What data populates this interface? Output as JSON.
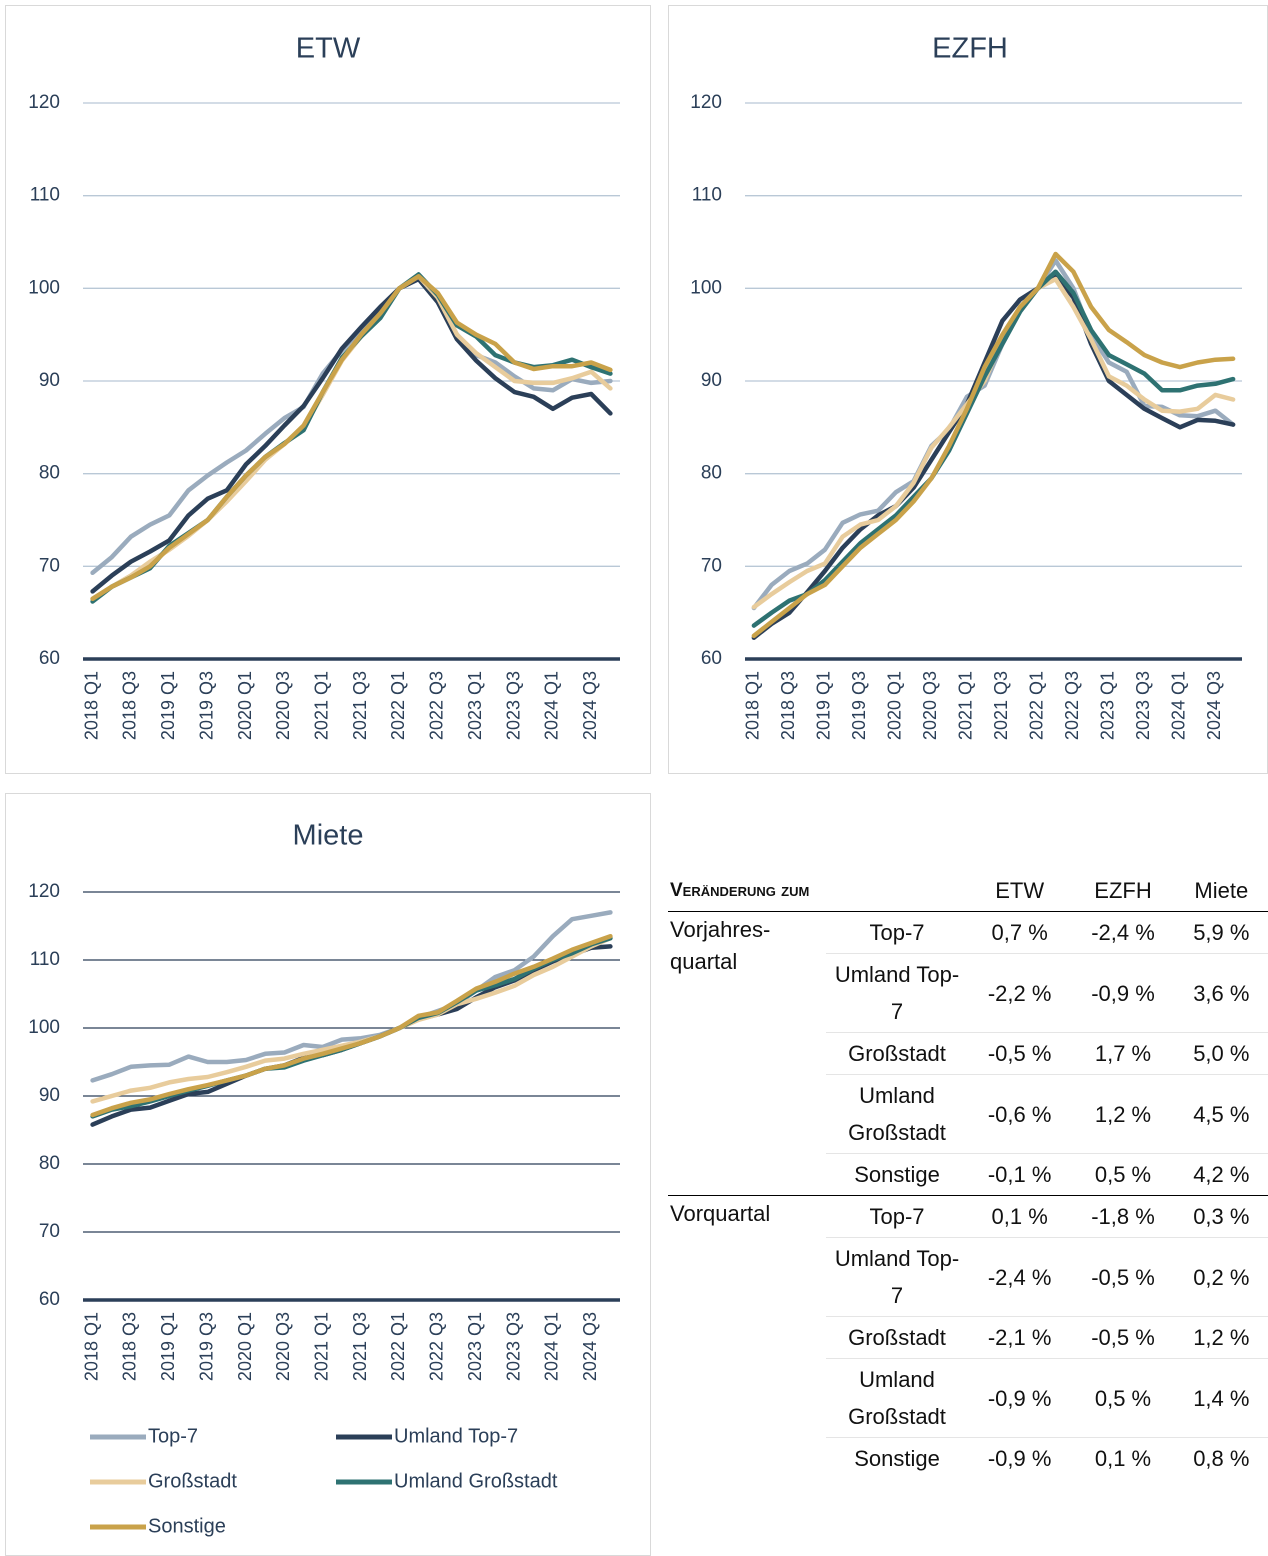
{
  "chart_data": [
    {
      "type": "line",
      "title": "ETW",
      "categories": [
        "2018 Q1",
        null,
        "2018 Q3",
        null,
        "2019 Q1",
        null,
        "2019 Q3",
        null,
        "2020 Q1",
        null,
        "2020 Q3",
        null,
        "2021 Q1",
        null,
        "2021 Q3",
        null,
        "2022 Q1",
        null,
        "2022 Q3",
        null,
        "2023 Q1",
        null,
        "2023 Q3",
        null,
        "2024 Q1",
        null,
        "2024 Q3",
        null
      ],
      "ylim": [
        60,
        120
      ],
      "yticks": [
        60,
        70,
        80,
        90,
        100,
        110,
        120
      ],
      "grid": true,
      "series": [
        {
          "name": "Top-7",
          "color": "#9aabbd",
          "values": [
            69.3,
            71,
            73.2,
            74.5,
            75.5,
            78.2,
            79.8,
            81.2,
            82.5,
            84.3,
            86,
            87.2,
            90.8,
            93.3,
            95.5,
            97.5,
            100,
            101.2,
            98.5,
            95,
            92.8,
            92,
            90.5,
            89.2,
            89,
            90.2,
            89.8,
            90
          ]
        },
        {
          "name": "Umland Top-7",
          "color": "#2b3f58",
          "values": [
            67.3,
            69,
            70.5,
            71.6,
            72.8,
            75.5,
            77.3,
            78.2,
            81,
            83,
            85.2,
            87.3,
            90.3,
            93.5,
            95.8,
            98,
            100,
            101,
            98.5,
            94.5,
            92.2,
            90.3,
            88.8,
            88.3,
            87,
            88.2,
            88.6,
            86.5
          ]
        },
        {
          "name": "Großstadt",
          "color": "#e8cc9c",
          "values": [
            66.5,
            67.8,
            69,
            70.5,
            71.8,
            73.3,
            75,
            77,
            79.2,
            81.5,
            83.2,
            85,
            88.5,
            92.2,
            94.8,
            97,
            100,
            101.3,
            99,
            95,
            93,
            91.5,
            90,
            89.8,
            89.8,
            90.3,
            91,
            89.2
          ]
        },
        {
          "name": "Umland Großstadt",
          "color": "#2e7272",
          "values": [
            66.2,
            67.8,
            68.8,
            69.8,
            72.2,
            73.6,
            75,
            77.5,
            79.8,
            81.8,
            83.3,
            84.7,
            88.8,
            92.5,
            94.8,
            96.8,
            100,
            101.5,
            99.3,
            96,
            94.8,
            92.8,
            92,
            91.5,
            91.7,
            92.3,
            91.5,
            90.8
          ]
        },
        {
          "name": "Sonstige",
          "color": "#c9a24a",
          "values": [
            66.5,
            67.8,
            68.8,
            70,
            72,
            73.5,
            75,
            77.5,
            79.8,
            81.8,
            83.2,
            85.2,
            88.8,
            92.3,
            95,
            97.3,
            100,
            101.3,
            99.5,
            96.3,
            95,
            94,
            92,
            91.3,
            91.6,
            91.6,
            92,
            91.2
          ]
        }
      ]
    },
    {
      "type": "line",
      "title": "EZFH",
      "categories": [
        "2018 Q1",
        null,
        "2018 Q3",
        null,
        "2019 Q1",
        null,
        "2019 Q3",
        null,
        "2020 Q1",
        null,
        "2020 Q3",
        null,
        "2021 Q1",
        null,
        "2021 Q3",
        null,
        "2022 Q1",
        null,
        "2022 Q3",
        null,
        "2023 Q1",
        null,
        "2023 Q3",
        null,
        "2024 Q1",
        null,
        "2024 Q3",
        null
      ],
      "ylim": [
        60,
        120
      ],
      "yticks": [
        60,
        70,
        80,
        90,
        100,
        110,
        120
      ],
      "grid": true,
      "series": [
        {
          "name": "Top-7",
          "color": "#9aabbd",
          "values": [
            65.5,
            68,
            69.5,
            70.3,
            71.8,
            74.7,
            75.6,
            76,
            78,
            79.2,
            83,
            84.8,
            88.3,
            89.5,
            94,
            97.5,
            100,
            103,
            100,
            95,
            92,
            91,
            87.3,
            87.2,
            86.3,
            86.2,
            86.8,
            85.3
          ]
        },
        {
          "name": "Umland Top-7",
          "color": "#2b3f58",
          "values": [
            62.3,
            63.8,
            65,
            67.2,
            69.5,
            72,
            74,
            75.5,
            76.5,
            78.5,
            81.5,
            84.5,
            87.5,
            92,
            96.5,
            98.8,
            100,
            101.5,
            99,
            94,
            90,
            88.5,
            87,
            86,
            85,
            85.8,
            85.7,
            85.3
          ]
        },
        {
          "name": "Großstadt",
          "color": "#e8cc9c",
          "values": [
            65.6,
            67,
            68.3,
            69.5,
            70.3,
            73.2,
            74.5,
            75,
            76.5,
            79,
            82.8,
            85,
            87.5,
            90,
            94.5,
            98,
            100,
            101,
            98,
            94.5,
            90.5,
            89.5,
            88,
            86.8,
            86.7,
            87,
            88.5,
            88
          ]
        },
        {
          "name": "Umland Großstadt",
          "color": "#2e7272",
          "values": [
            63.6,
            65,
            66.3,
            67,
            68.5,
            70.5,
            72.5,
            74,
            75.5,
            77.5,
            79.5,
            82.5,
            86.5,
            90.5,
            94,
            97.5,
            100,
            101.8,
            99.5,
            95.5,
            92.8,
            91.8,
            90.8,
            89,
            89,
            89.5,
            89.7,
            90.2
          ]
        },
        {
          "name": "Sonstige",
          "color": "#c9a24a",
          "values": [
            62.5,
            64,
            65.5,
            67,
            68,
            70,
            72,
            73.5,
            75,
            77,
            79.5,
            83,
            87,
            91.5,
            95,
            98,
            100,
            103.7,
            101.8,
            98,
            95.5,
            94.2,
            92.8,
            92,
            91.5,
            92,
            92.3,
            92.4
          ]
        }
      ]
    },
    {
      "type": "line",
      "title": "Miete",
      "categories": [
        "2018 Q1",
        null,
        "2018 Q3",
        null,
        "2019 Q1",
        null,
        "2019 Q3",
        null,
        "2020 Q1",
        null,
        "2020 Q3",
        null,
        "2021 Q1",
        null,
        "2021 Q3",
        null,
        "2022 Q1",
        null,
        "2022 Q3",
        null,
        "2023 Q1",
        null,
        "2023 Q3",
        null,
        "2024 Q1",
        null,
        "2024 Q3",
        null
      ],
      "ylim": [
        60,
        120
      ],
      "yticks": [
        60,
        70,
        80,
        90,
        100,
        110,
        120
      ],
      "grid": true,
      "legend": "bottom",
      "series": [
        {
          "name": "Top-7",
          "color": "#9aabbd",
          "values": [
            92.3,
            93.2,
            94.3,
            94.5,
            94.6,
            95.8,
            95,
            95,
            95.3,
            96.2,
            96.4,
            97.5,
            97.2,
            98.3,
            98.5,
            99,
            100,
            101.5,
            102.5,
            103.5,
            105.5,
            107.5,
            108.5,
            110.5,
            113.5,
            116,
            116.5,
            117
          ]
        },
        {
          "name": "Umland Top-7",
          "color": "#2b3f58",
          "values": [
            85.8,
            87,
            88,
            88.3,
            89.3,
            90.3,
            90.6,
            91.8,
            93,
            94,
            94.5,
            95.6,
            96,
            96.8,
            97.8,
            98.8,
            100,
            101.3,
            102,
            102.8,
            104.5,
            106,
            107,
            108.5,
            109.8,
            110.8,
            111.8,
            112
          ]
        },
        {
          "name": "Großstadt",
          "color": "#e8cc9c",
          "values": [
            89.2,
            90,
            90.8,
            91.2,
            92,
            92.5,
            92.8,
            93.5,
            94.3,
            95.2,
            95.5,
            96.2,
            96.8,
            97.4,
            98,
            98.8,
            100,
            101.2,
            102,
            103.5,
            104.3,
            105.2,
            106.2,
            107.8,
            109,
            110.5,
            112,
            113.2
          ]
        },
        {
          "name": "Umland Großstadt",
          "color": "#2e7272",
          "values": [
            87,
            88,
            88.5,
            89.2,
            90,
            90.8,
            91.5,
            92.3,
            93,
            94,
            94.2,
            95.2,
            96,
            96.8,
            97.8,
            98.8,
            100,
            101.5,
            102.2,
            103.8,
            105.5,
            106.3,
            107.2,
            108.7,
            110,
            111,
            112.3,
            113.2
          ]
        },
        {
          "name": "Sonstige",
          "color": "#c9a24a",
          "values": [
            87.2,
            88.2,
            89,
            89.5,
            90.3,
            91,
            91.6,
            92.3,
            93,
            94,
            94.5,
            95.5,
            96.2,
            97,
            97.8,
            98.8,
            100,
            101.8,
            102.3,
            104,
            105.8,
            106.8,
            108,
            109,
            110.2,
            111.5,
            112.5,
            113.5
          ]
        }
      ]
    }
  ],
  "table": {
    "header": [
      "Veränderung zum",
      "ETW",
      "EZFH",
      "Miete"
    ],
    "groups": [
      {
        "label": "Vorjahres-quartal",
        "rows": [
          [
            "Top-7",
            "0,7 %",
            "-2,4 %",
            "5,9 %"
          ],
          [
            "Umland Top-7",
            "-2,2 %",
            "-0,9 %",
            "3,6 %"
          ],
          [
            "Großstadt",
            "-0,5 %",
            "1,7 %",
            "5,0 %"
          ],
          [
            "Umland Großstadt",
            "-0,6 %",
            "1,2 %",
            "4,5 %"
          ],
          [
            "Sonstige",
            "-0,1 %",
            "0,5 %",
            "4,2 %"
          ]
        ]
      },
      {
        "label": "Vorquartal",
        "rows": [
          [
            "Top-7",
            "0,1 %",
            "-1,8 %",
            "0,3 %"
          ],
          [
            "Umland Top-7",
            "-2,4 %",
            "-0,5 %",
            "0,2 %"
          ],
          [
            "Großstadt",
            "-2,1 %",
            "-0,5 %",
            "1,2 %"
          ],
          [
            "Umland Großstadt",
            "-0,9 %",
            "0,5 %",
            "1,4 %"
          ],
          [
            "Sonstige",
            "-0,9 %",
            "0,1 %",
            "0,8 %"
          ]
        ]
      }
    ]
  }
}
